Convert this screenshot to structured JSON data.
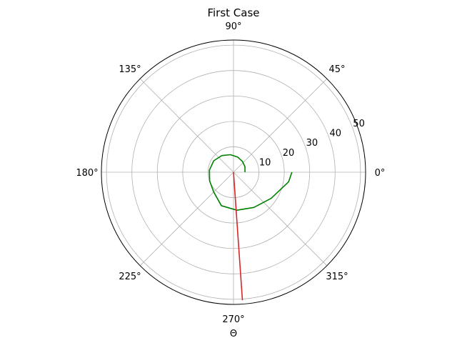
{
  "chart_data": {
    "type": "polar-line",
    "title": "First Case",
    "xlabel": "Θ",
    "theta_ticks": [
      {
        "deg": 0,
        "label": "0°"
      },
      {
        "deg": 45,
        "label": "45°"
      },
      {
        "deg": 90,
        "label": "90°"
      },
      {
        "deg": 135,
        "label": "135°"
      },
      {
        "deg": 180,
        "label": "180°"
      },
      {
        "deg": 225,
        "label": "225°"
      },
      {
        "deg": 270,
        "label": "270°"
      },
      {
        "deg": 315,
        "label": "315°"
      }
    ],
    "r_ticks": [
      {
        "value": 10,
        "label": "10"
      },
      {
        "value": 20,
        "label": "20"
      },
      {
        "value": 30,
        "label": "30"
      },
      {
        "value": 40,
        "label": "40"
      },
      {
        "value": 50,
        "label": "50"
      }
    ],
    "rlim": [
      0,
      52
    ],
    "grid": true,
    "series": [
      {
        "color": "#008000",
        "points": [
          [
            0,
            4.5
          ],
          [
            25,
            5.0
          ],
          [
            50,
            5.5
          ],
          [
            75,
            6.2
          ],
          [
            100,
            7.0
          ],
          [
            125,
            8.0
          ],
          [
            150,
            9.0
          ],
          [
            175,
            9.5
          ],
          [
            200,
            10.0
          ],
          [
            225,
            11.0
          ],
          [
            250,
            14.0
          ],
          [
            275,
            15.0
          ],
          [
            300,
            16.0
          ],
          [
            325,
            18.0
          ],
          [
            350,
            22.0
          ],
          [
            360,
            23.0
          ]
        ]
      },
      {
        "color": "#d62728",
        "points": [
          [
            0,
            0
          ],
          [
            274,
            50.5
          ]
        ]
      }
    ]
  }
}
